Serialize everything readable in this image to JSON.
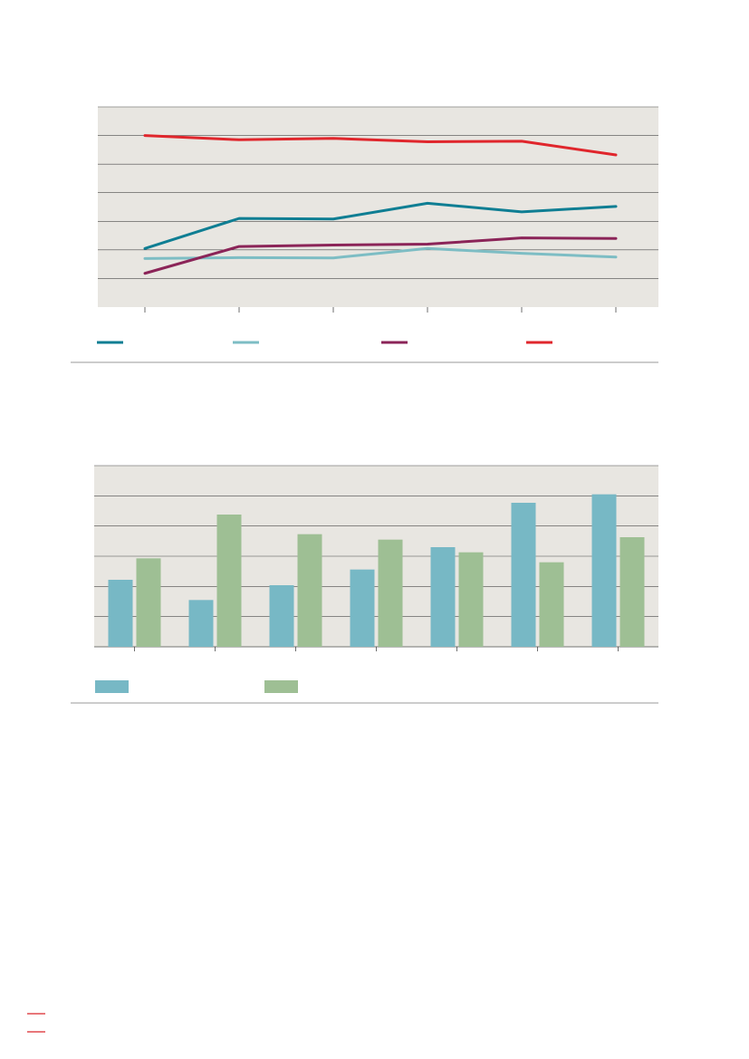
{
  "colors": {
    "plot_background": "#e8e6e1",
    "gridline": "#4a4a4a",
    "divider": "#9a9a9a",
    "page_marker": "#d9262b"
  },
  "chart_data": [
    {
      "type": "line",
      "title": "",
      "xlabel": "",
      "ylabel": "",
      "x": [
        1,
        2,
        3,
        4,
        5,
        6
      ],
      "ylim": [
        0,
        7
      ],
      "grid": true,
      "legend_position": "bottom",
      "series": [
        {
          "color": "#0f7e93",
          "values": [
            2.05,
            3.1,
            3.08,
            3.63,
            3.33,
            3.52
          ]
        },
        {
          "color": "#7dbdc4",
          "values": [
            1.7,
            1.73,
            1.72,
            2.05,
            1.88,
            1.75
          ]
        },
        {
          "color": "#8b2458",
          "values": [
            1.18,
            2.12,
            2.17,
            2.2,
            2.42,
            2.4
          ]
        },
        {
          "color": "#e0262c",
          "values": [
            6.0,
            5.85,
            5.9,
            5.78,
            5.8,
            5.32
          ]
        }
      ]
    },
    {
      "type": "bar",
      "title": "",
      "xlabel": "",
      "ylabel": "",
      "categories": [
        "",
        "",
        "",
        "",
        "",
        "",
        ""
      ],
      "ylim": [
        0,
        6
      ],
      "grid": true,
      "legend_position": "bottom",
      "series": [
        {
          "color": "#77b8c5",
          "values": [
            2.22,
            1.55,
            2.04,
            2.56,
            3.3,
            4.77,
            5.05
          ]
        },
        {
          "color": "#9ebf94",
          "values": [
            2.93,
            4.38,
            3.73,
            3.55,
            3.13,
            2.8,
            3.63
          ]
        }
      ]
    }
  ]
}
